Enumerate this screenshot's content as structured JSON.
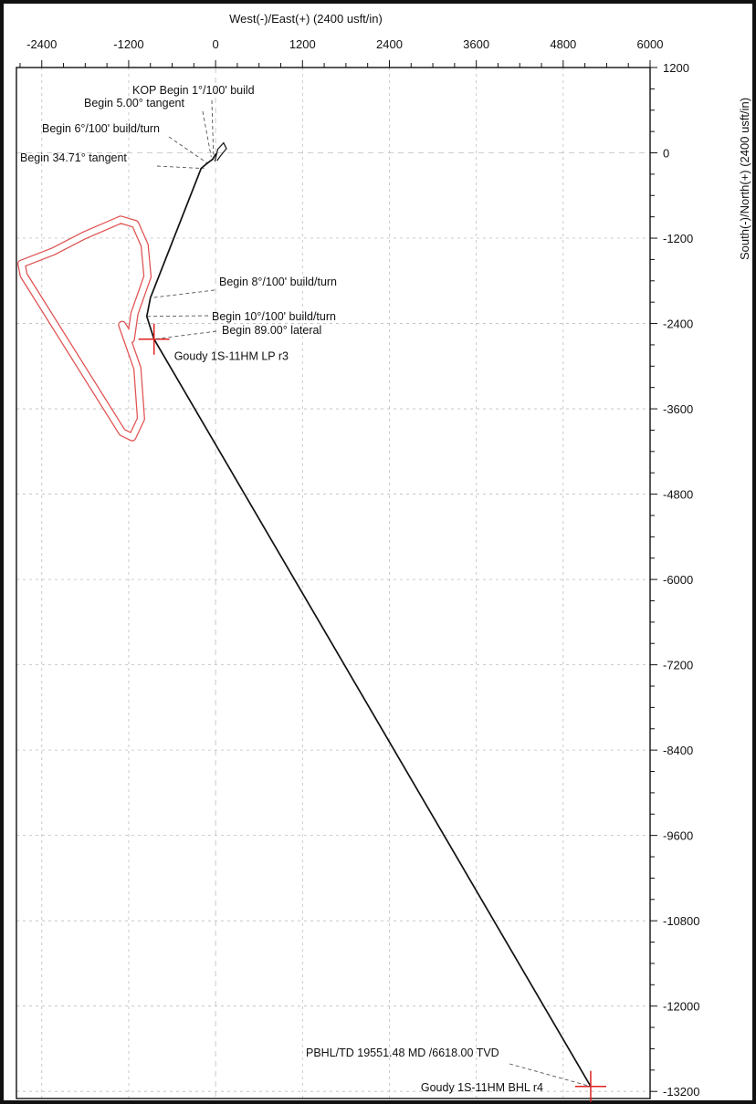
{
  "chart_data": {
    "type": "line",
    "xlabel": "West(-)/East(+) (2400 usft/in)",
    "ylabel": "South(-)/North(+) (2400 usft/in)",
    "xlim": [
      -2750,
      6000
    ],
    "ylim": [
      -13300,
      1200
    ],
    "x_ticks": [
      -2400,
      -1200,
      0,
      1200,
      2400,
      3600,
      4800,
      6000
    ],
    "y_ticks": [
      1200,
      0,
      -1200,
      -2400,
      -3600,
      -4800,
      -6000,
      -7200,
      -8400,
      -9600,
      -10800,
      -12000,
      -13200
    ],
    "x_tick_labels": [
      "-2400",
      "-1200",
      "0",
      "1200",
      "2400",
      "3600",
      "4800",
      "6000"
    ],
    "y_tick_labels": [
      "1200",
      "0",
      "-1200",
      "-2400",
      "-3600",
      "-4800",
      "-6000",
      "-7200",
      "-8400",
      "-9600",
      "-10800",
      "-12000",
      "-13200"
    ],
    "grid": true,
    "colors": {
      "path": "#111111",
      "lease": "#e05050",
      "target": "#e02020",
      "grid": "#bdbdbd"
    },
    "series": [
      {
        "role": "wellbore-path",
        "x": [
          0,
          -40,
          -120,
          -200,
          -900,
          -950,
          -850,
          5180
        ],
        "y": [
          -20,
          -90,
          -150,
          -220,
          -2040,
          -2300,
          -2620,
          -13130
        ]
      },
      {
        "role": "lease-boundary",
        "x": [
          -1310,
          -1110,
          -980,
          -940,
          -1120,
          -1170,
          -1290,
          -1080,
          -1030,
          -1150,
          -1290,
          -2650,
          -2680,
          -2250,
          -1810,
          -1310
        ],
        "y": [
          -940,
          -1000,
          -1300,
          -1740,
          -2260,
          -2620,
          -2420,
          -3030,
          -3740,
          -4000,
          -3930,
          -1720,
          -1560,
          -1390,
          -1160,
          -940
        ]
      }
    ],
    "targets": [
      {
        "label": "Goudy 1S-11HM LP r3",
        "x": -850,
        "y": -2620
      },
      {
        "label": "Goudy 1S-11HM BHL r4",
        "x": 5180,
        "y": -13130
      }
    ],
    "annotations": [
      {
        "text": "KOP Begin 1°/100' build",
        "x": -30,
        "y": -20
      },
      {
        "text": "Begin 5.00° tangent",
        "x": -60,
        "y": -60
      },
      {
        "text": "Begin 6°/100' build/turn",
        "x": -120,
        "y": -140
      },
      {
        "text": "Begin 34.71° tangent",
        "x": -160,
        "y": -220
      },
      {
        "text": "Begin 8°/100' build/turn",
        "x": -900,
        "y": -2040
      },
      {
        "text": "Begin 10°/100' build/turn",
        "x": -950,
        "y": -2300
      },
      {
        "text": "Begin 89.00° lateral",
        "x": -850,
        "y": -2620
      },
      {
        "text": "PBHL/TD 19551.48 MD /6618.00 TVD",
        "x": 5180,
        "y": -13130
      }
    ]
  }
}
